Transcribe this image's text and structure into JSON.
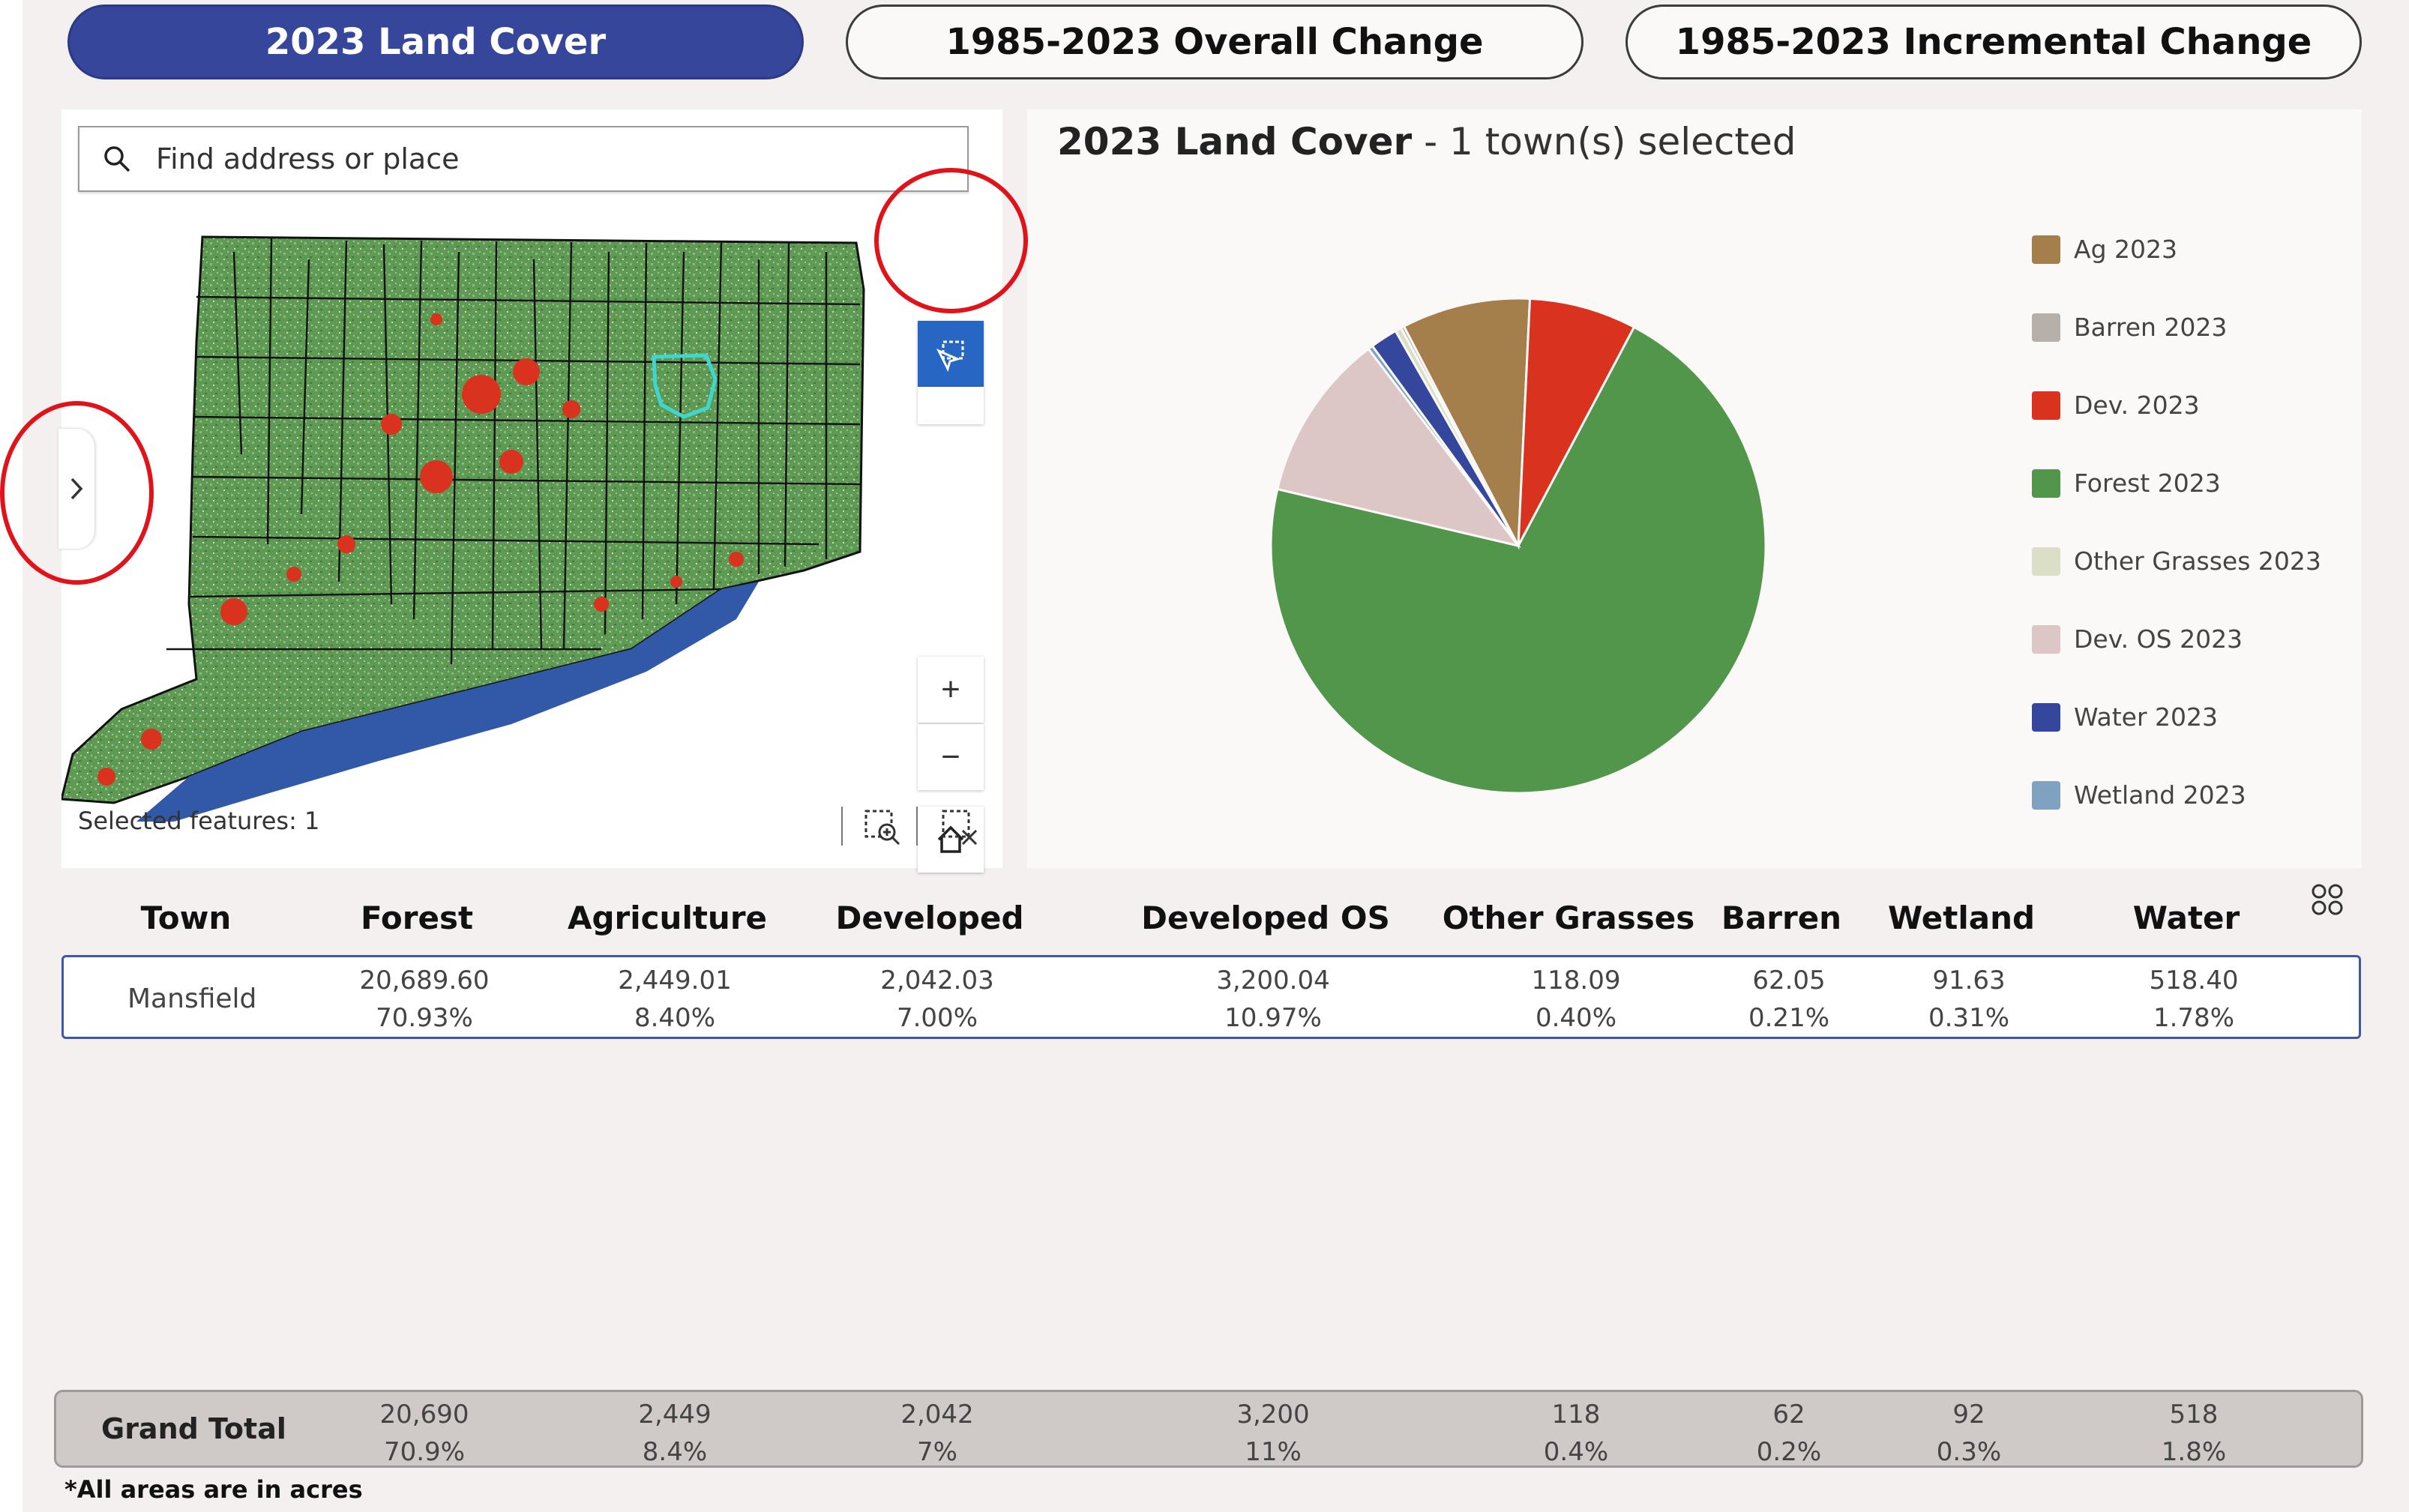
{
  "tabs": [
    {
      "label": "2023 Land Cover",
      "active": true
    },
    {
      "label": "1985-2023 Overall Change",
      "active": false
    },
    {
      "label": "1985-2023 Incremental Change",
      "active": false
    }
  ],
  "map": {
    "search_placeholder": "Find address or place",
    "selected_features_text": "Selected features: 1",
    "zoom_in_label": "+",
    "zoom_out_label": "−"
  },
  "chart": {
    "title_bold": "2023 Land Cover",
    "title_rest": " - 1 town(s) selected",
    "legend": [
      {
        "label": "Ag 2023",
        "color": "#a47e4b"
      },
      {
        "label": "Barren 2023",
        "color": "#b5b0aa"
      },
      {
        "label": "Dev. 2023",
        "color": "#d9321e"
      },
      {
        "label": "Forest 2023",
        "color": "#52964b"
      },
      {
        "label": "Other Grasses 2023",
        "color": "#dcdfc8"
      },
      {
        "label": "Dev. OS 2023",
        "color": "#dcc6c6"
      },
      {
        "label": "Water 2023",
        "color": "#34479c"
      },
      {
        "label": "Wetland 2023",
        "color": "#7fa2c0"
      }
    ]
  },
  "chart_data": {
    "type": "pie",
    "slices": [
      {
        "label": "Forest 2023",
        "value": 20689.6,
        "color": "#52964b"
      },
      {
        "label": "Dev. OS 2023",
        "value": 3200.04,
        "color": "#dcc6c6"
      },
      {
        "label": "Wetland 2023",
        "value": 91.63,
        "color": "#7fa2c0"
      },
      {
        "label": "Water 2023",
        "value": 518.4,
        "color": "#34479c"
      },
      {
        "label": "Other Grasses 2023",
        "value": 118.09,
        "color": "#dcdfc8"
      },
      {
        "label": "Barren 2023",
        "value": 62.05,
        "color": "#b5b0aa"
      },
      {
        "label": "Ag 2023",
        "value": 2449.01,
        "color": "#a47e4b"
      },
      {
        "label": "Dev. 2023",
        "value": 2042.03,
        "color": "#d9321e"
      }
    ],
    "legend_position": "right"
  },
  "table": {
    "headers": [
      "Town",
      "Forest",
      "Agriculture",
      "Developed",
      "Developed OS",
      "Other Grasses",
      "Barren",
      "Wetland",
      "Water"
    ],
    "rows": [
      {
        "town": "Mansfield",
        "values": [
          {
            "acres": "20,689.60",
            "pct": "70.93%"
          },
          {
            "acres": "2,449.01",
            "pct": "8.40%"
          },
          {
            "acres": "2,042.03",
            "pct": "7.00%"
          },
          {
            "acres": "3,200.04",
            "pct": "10.97%"
          },
          {
            "acres": "118.09",
            "pct": "0.40%"
          },
          {
            "acres": "62.05",
            "pct": "0.21%"
          },
          {
            "acres": "91.63",
            "pct": "0.31%"
          },
          {
            "acres": "518.40",
            "pct": "1.78%"
          }
        ]
      }
    ],
    "total_label": "Grand Total",
    "totals": [
      {
        "acres": "20,690",
        "pct": "70.9%"
      },
      {
        "acres": "2,449",
        "pct": "8.4%"
      },
      {
        "acres": "2,042",
        "pct": "7%"
      },
      {
        "acres": "3,200",
        "pct": "11%"
      },
      {
        "acres": "118",
        "pct": "0.4%"
      },
      {
        "acres": "62",
        "pct": "0.2%"
      },
      {
        "acres": "92",
        "pct": "0.3%"
      },
      {
        "acres": "518",
        "pct": "1.8%"
      }
    ],
    "footnote": "*All areas are in acres"
  }
}
